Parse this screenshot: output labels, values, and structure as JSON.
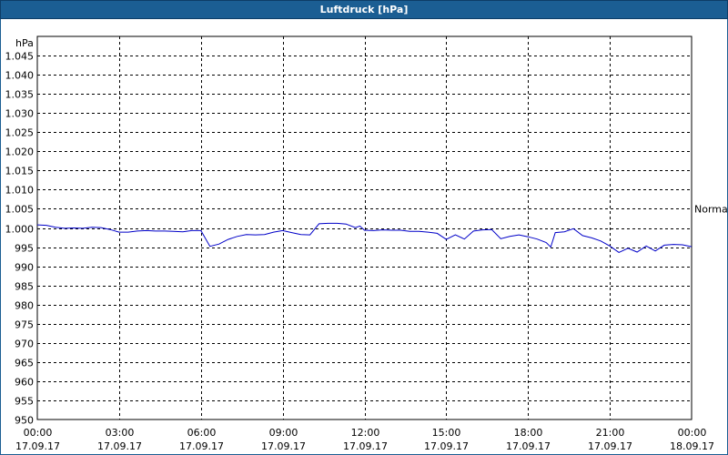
{
  "chart_data": {
    "type": "line",
    "title": "Luftdruck [hPa]",
    "ylabel": "hPa",
    "ylim": [
      950,
      1050
    ],
    "yticks": [
      "1.045",
      "1.040",
      "1.035",
      "1.030",
      "1.025",
      "1.020",
      "1.015",
      "1.010",
      "1.005",
      "1.000",
      "995",
      "990",
      "985",
      "980",
      "975",
      "970",
      "965",
      "960",
      "955",
      "950"
    ],
    "ytick_values": [
      1045,
      1040,
      1035,
      1030,
      1025,
      1020,
      1015,
      1010,
      1005,
      1000,
      995,
      990,
      985,
      980,
      975,
      970,
      965,
      960,
      955,
      950
    ],
    "xlim": [
      "17.09.17 00:00",
      "18.09.17 00:00"
    ],
    "xticks": [
      {
        "time": "00:00",
        "date": "17.09.17"
      },
      {
        "time": "03:00",
        "date": "17.09.17"
      },
      {
        "time": "06:00",
        "date": "17.09.17"
      },
      {
        "time": "09:00",
        "date": "17.09.17"
      },
      {
        "time": "12:00",
        "date": "17.09.17"
      },
      {
        "time": "15:00",
        "date": "17.09.17"
      },
      {
        "time": "18:00",
        "date": "17.09.17"
      },
      {
        "time": "21:00",
        "date": "17.09.17"
      },
      {
        "time": "00:00",
        "date": "18.09.17"
      }
    ],
    "grid": true,
    "reference_line": {
      "label": "Normal",
      "value": 1005
    },
    "series": [
      {
        "color": "#0000c8",
        "x": [
          "00:00",
          "00:20",
          "00:40",
          "01:00",
          "01:20",
          "01:40",
          "02:00",
          "02:20",
          "02:40",
          "03:00",
          "03:20",
          "03:40",
          "04:00",
          "04:20",
          "04:40",
          "05:00",
          "05:20",
          "05:40",
          "06:00",
          "06:20",
          "06:40",
          "07:00",
          "07:20",
          "07:40",
          "08:00",
          "08:20",
          "08:40",
          "09:00",
          "09:20",
          "09:40",
          "10:00",
          "10:20",
          "10:40",
          "11:00",
          "11:20",
          "11:40",
          "11:50",
          "12:00",
          "12:20",
          "12:40",
          "13:00",
          "13:20",
          "13:40",
          "14:00",
          "14:20",
          "14:40",
          "15:00",
          "15:20",
          "15:40",
          "16:00",
          "16:20",
          "16:40",
          "17:00",
          "17:20",
          "17:40",
          "18:00",
          "18:20",
          "18:40",
          "18:50",
          "19:00",
          "19:20",
          "19:40",
          "20:00",
          "20:20",
          "20:40",
          "21:00",
          "21:20",
          "21:40",
          "22:00",
          "22:20",
          "22:40",
          "23:00",
          "23:20",
          "23:40",
          "24:00"
        ],
        "y": [
          1000.8,
          1000.7,
          1000.2,
          999.9,
          1000.0,
          999.9,
          1000.2,
          1000.1,
          999.6,
          998.9,
          998.9,
          999.2,
          999.3,
          999.2,
          999.2,
          999.1,
          999.0,
          999.3,
          999.3,
          995.2,
          995.8,
          997.0,
          997.8,
          998.3,
          998.2,
          998.3,
          998.9,
          999.3,
          998.8,
          998.3,
          998.2,
          1001.1,
          1001.2,
          1001.2,
          1001.0,
          1000.1,
          1000.5,
          999.4,
          999.3,
          999.5,
          999.4,
          999.4,
          999.1,
          999.1,
          998.9,
          998.6,
          997.0,
          998.2,
          997.1,
          999.2,
          999.5,
          999.6,
          997.2,
          997.8,
          998.2,
          997.7,
          997.1,
          996.2,
          995.0,
          998.8,
          999.0,
          999.8,
          998.0,
          997.4,
          996.6,
          995.3,
          993.6,
          994.7,
          993.7,
          995.3,
          994.0,
          995.5,
          995.7,
          995.6,
          995.1
        ]
      }
    ]
  }
}
